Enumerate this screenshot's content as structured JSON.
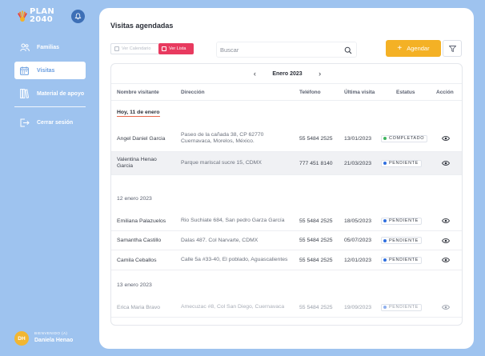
{
  "brand": {
    "line1": "PLAN",
    "line2": "2040"
  },
  "sidebar": {
    "items": [
      {
        "label": "Familias",
        "icon": "users-icon",
        "active": false
      },
      {
        "label": "Visitas",
        "icon": "calendar-icon",
        "active": true
      },
      {
        "label": "Material de apoyo",
        "icon": "book-icon",
        "active": false
      }
    ],
    "logout_label": "Cerrar sesión"
  },
  "user": {
    "welcome": "BIENVENIDO (A)",
    "name": "Daniela Henao",
    "initials": "DH"
  },
  "main": {
    "title": "Visitas agendadas",
    "toggle_calendar": "Ver Calendario",
    "toggle_list": "Ver Lista",
    "search_placeholder": "Buscar",
    "add_label": "Agendar",
    "month": "Enero 2023"
  },
  "table": {
    "headers": [
      "Nombre visitante",
      "Dirección",
      "Teléfono",
      "Última visita",
      "Estatus",
      "Acción"
    ],
    "groups": [
      {
        "label": "Hoy, 11 de enero",
        "rows": [
          {
            "name": "Angel Daniel Garcia",
            "address_line1": "Paseo de la cañada 38, CP 62770",
            "address_line2": "Cuernavaca, Morelos, México.",
            "phone": "55 5484 2525",
            "last_visit": "13/01/2023",
            "status": "COMPLETADO",
            "status_color": "#3fb55f"
          },
          {
            "name": "Valentina Henao",
            "name_line2": "Garcia",
            "address_line1": "Parque mariscal sucre 15, CDMX",
            "phone": "777 451 8140",
            "last_visit": "21/03/2023",
            "status": "PENDIENTE",
            "status_color": "#2f6fe0"
          }
        ]
      },
      {
        "label": "12 enero 2023",
        "rows": [
          {
            "name": "Emiliana Palazuelos",
            "address_line1": "Rio Suchiate 684, San pedro Garza García",
            "phone": "55 5484 2525",
            "last_visit": "18/05/2023",
            "status": "PENDIENTE",
            "status_color": "#2f6fe0"
          },
          {
            "name": "Samantha Castillo",
            "address_line1": "Dalas 487. Col Narvarte, CDMX",
            "phone": "55 5484 2525",
            "last_visit": "05/07/2023",
            "status": "PENDIENTE",
            "status_color": "#2f6fe0"
          },
          {
            "name": "Camila Ceballos",
            "address_line1": "Calle 5a #33-40, El poblado, Aguascalientes",
            "phone": "55 5484 2525",
            "last_visit": "12/01/2023",
            "status": "PENDIENTE",
            "status_color": "#2f6fe0"
          }
        ]
      },
      {
        "label": "13 enero 2023",
        "rows": [
          {
            "name": "Erica Maria Bravo",
            "address_line1": "Amecuzac #8, Col San Diego, Cuernavaca",
            "phone": "55 5484 2525",
            "last_visit": "19/09/2023",
            "status": "PENDIENTE",
            "status_color": "#8fb0ee"
          }
        ]
      }
    ]
  },
  "colors": {
    "accent": "#f4b125",
    "list_toggle": "#e83a5f",
    "sidebar_bg": "#9ec3ef",
    "today_underline": "#e8684a"
  }
}
